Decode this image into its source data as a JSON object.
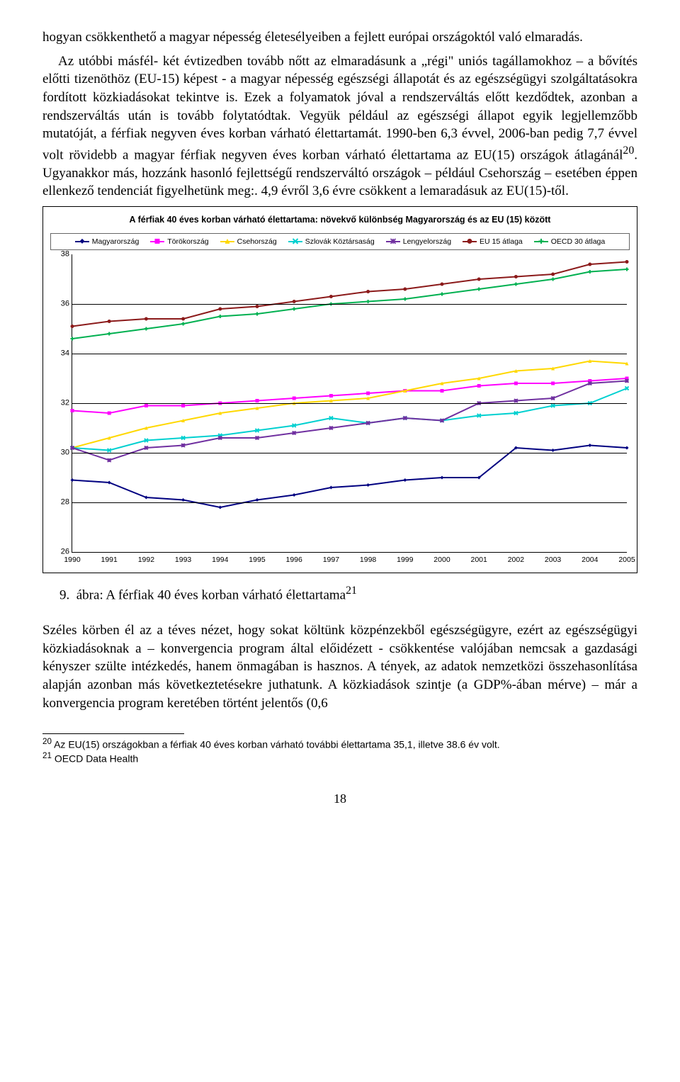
{
  "para1": "hogyan csökkenthető a magyar népesség életesélyeiben a fejlett európai országoktól való elmaradás.",
  "para2": "Az utóbbi másfél- két évtizedben tovább nőtt az elmaradásunk a „régi\" uniós tagállamokhoz – a bővítés előtti tizenöthöz (EU-15) képest - a magyar népesség egészségi állapotát és az egészségügyi szolgáltatásokra fordított közkiadásokat tekintve is. Ezek a folyamatok jóval a rendszerváltás előtt kezdődtek, azonban a rendszerváltás után is tovább folytatódtak. Vegyük például az egészségi állapot egyik legjellemzőbb mutatóját, a férfiak negyven éves korban várható élettartamát. 1990-ben 6,3 évvel, 2006-ban pedig 7,7 évvel volt rövidebb a magyar férfiak negyven éves korban várható élettartama az EU(15) országok átlagánál",
  "fn20_marker": "20",
  "para2b": ". Ugyanakkor más, hozzánk hasonló fejlettségű rendszerváltó országok – például Csehország – esetében éppen ellenkező tendenciát figyelhetünk meg:. 4,9 évről 3,6 évre csökkent a lemaradásuk az EU(15)-től.",
  "chart": {
    "title": "A férfiak 40 éves korban várható élettartama: növekvő különbség Magyarország és az EU (15) között",
    "ymin": 26,
    "ymax": 38,
    "ystep": 2,
    "years": [
      "1990",
      "1991",
      "1992",
      "1993",
      "1994",
      "1995",
      "1996",
      "1997",
      "1998",
      "1999",
      "2000",
      "2001",
      "2002",
      "2003",
      "2004",
      "2005"
    ],
    "grid_color": "#000000",
    "background_color": "#ffffff",
    "line_width": 2,
    "marker_size": 5,
    "series": [
      {
        "name": "Magyarország",
        "label": "Magyarország",
        "color": "#000080",
        "marker": "diamond",
        "values": [
          28.9,
          28.8,
          28.2,
          28.1,
          27.8,
          28.1,
          28.3,
          28.6,
          28.7,
          28.9,
          29.0,
          29.0,
          30.2,
          30.1,
          30.3,
          30.2
        ]
      },
      {
        "name": "Törökország",
        "label": "Törökország",
        "color": "#ff00ff",
        "marker": "square",
        "values": [
          31.7,
          31.6,
          31.9,
          31.9,
          32.0,
          32.1,
          32.2,
          32.3,
          32.4,
          32.5,
          32.5,
          32.7,
          32.8,
          32.8,
          32.9,
          33.0
        ]
      },
      {
        "name": "Csehország",
        "label": "Csehország",
        "color": "#ffd800",
        "marker": "triangle",
        "values": [
          30.2,
          30.6,
          31.0,
          31.3,
          31.6,
          31.8,
          32.0,
          32.1,
          32.2,
          32.5,
          32.8,
          33.0,
          33.3,
          33.4,
          33.7,
          33.6
        ]
      },
      {
        "name": "Szlovák Köztársaság",
        "label": "Szlovák Köztársaság",
        "color": "#00d0d0",
        "marker": "x",
        "values": [
          30.2,
          30.1,
          30.5,
          30.6,
          30.7,
          30.9,
          31.1,
          31.4,
          31.2,
          31.4,
          31.3,
          31.5,
          31.6,
          31.9,
          32.0,
          32.6
        ]
      },
      {
        "name": "Lengyelország",
        "label": "Lengyelország",
        "color": "#7030a0",
        "marker": "star",
        "values": [
          30.2,
          29.7,
          30.2,
          30.3,
          30.6,
          30.6,
          30.8,
          31.0,
          31.2,
          31.4,
          31.3,
          32.0,
          32.1,
          32.2,
          32.8,
          32.9
        ]
      },
      {
        "name": "EU 15 átlaga",
        "label": "EU 15 átlaga",
        "color": "#8b1a1a",
        "marker": "circle",
        "values": [
          35.1,
          35.3,
          35.4,
          35.4,
          35.8,
          35.9,
          36.1,
          36.3,
          36.5,
          36.6,
          36.8,
          37.0,
          37.1,
          37.2,
          37.6,
          37.7
        ]
      },
      {
        "name": "OECD 30 átlaga",
        "label": "OECD 30 átlaga",
        "color": "#00b050",
        "marker": "plus",
        "values": [
          34.6,
          34.8,
          35.0,
          35.2,
          35.5,
          35.6,
          35.8,
          36.0,
          36.1,
          36.2,
          36.4,
          36.6,
          36.8,
          37.0,
          37.3,
          37.4
        ]
      }
    ]
  },
  "caption_num": "9.",
  "caption_text": "ábra: A férfiak 40 éves korban várható élettartama",
  "caption_fn": "21",
  "para3": "Széles körben él az a téves nézet, hogy sokat költünk közpénzekből egészségügyre, ezért az egészségügyi közkiadásoknak a – konvergencia program által előidézett - csökkentése valójában nemcsak a gazdasági kényszer szülte intézkedés, hanem önmagában is hasznos. A tények, az adatok nemzetközi összehasonlítása alapján azonban más következtetésekre juthatunk. A közkiadások szintje (a GDP%-ában mérve) – már a konvergencia program keretében történt jelentős (0,6",
  "footnote20_marker": "20",
  "footnote20": " Az EU(15) országokban a férfiak 40 éves korban várható további élettartama 35,1, illetve 38.6 év volt.",
  "footnote21_marker": "21",
  "footnote21": " OECD Data Health",
  "pagenum": "18"
}
